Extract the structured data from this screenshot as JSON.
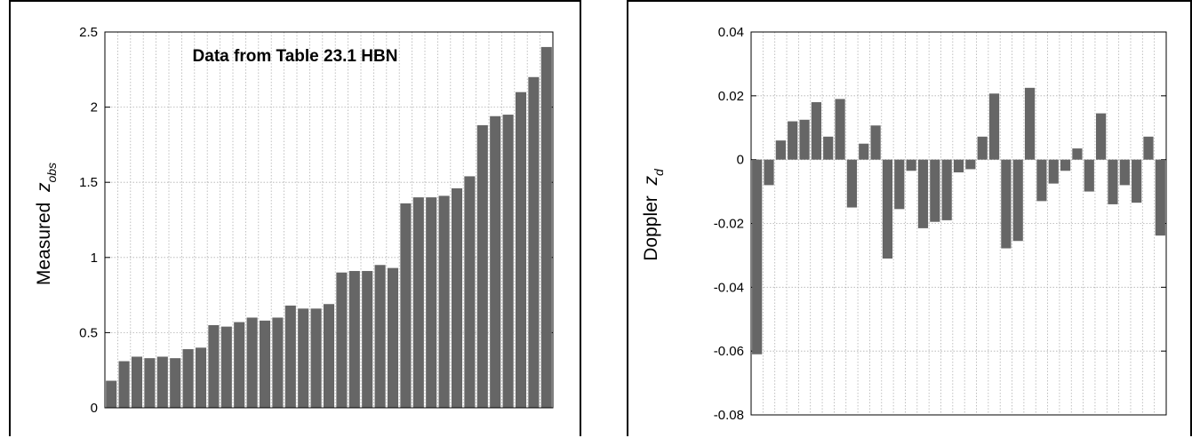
{
  "chart_data": [
    {
      "type": "bar",
      "title": "Data from Table 23.1 HBN",
      "ylabel_main": "Measured",
      "ylabel_var": "z",
      "ylabel_sub": "obs",
      "ylim": [
        0,
        2.5
      ],
      "yticks": [
        "0",
        "0.5",
        "1",
        "1.5",
        "2",
        "2.5"
      ],
      "ytick_values": [
        0,
        0.5,
        1,
        1.5,
        2,
        2.5
      ],
      "grid": true,
      "bar_color": "#666666",
      "values": [
        0.18,
        0.31,
        0.34,
        0.33,
        0.34,
        0.33,
        0.39,
        0.4,
        0.55,
        0.54,
        0.57,
        0.6,
        0.58,
        0.6,
        0.68,
        0.66,
        0.66,
        0.69,
        0.9,
        0.91,
        0.91,
        0.95,
        0.93,
        1.36,
        1.4,
        1.4,
        1.41,
        1.46,
        1.54,
        1.88,
        1.94,
        1.95,
        2.1,
        2.2,
        2.4
      ]
    },
    {
      "type": "bar",
      "title": "",
      "ylabel_main": "Doppler",
      "ylabel_var": "z",
      "ylabel_sub": "d",
      "ylim": [
        -0.08,
        0.04
      ],
      "yticks": [
        "0.04",
        "0.02",
        "0",
        "-0.02",
        "-0.04",
        "-0.06",
        "-0.08"
      ],
      "ytick_values": [
        0.04,
        0.02,
        0,
        -0.02,
        -0.04,
        -0.06,
        -0.08
      ],
      "grid": true,
      "bar_color": "#666666",
      "values": [
        -0.061,
        -0.008,
        0.006,
        0.012,
        0.0125,
        0.018,
        0.0072,
        0.019,
        -0.015,
        0.005,
        0.0107,
        -0.031,
        -0.0155,
        -0.0035,
        -0.0215,
        -0.0195,
        -0.019,
        -0.004,
        -0.003,
        0.0072,
        0.0207,
        -0.0278,
        -0.0255,
        0.0225,
        -0.013,
        -0.0075,
        -0.0035,
        0.0035,
        -0.01,
        0.0145,
        -0.014,
        -0.008,
        -0.0135,
        0.0072,
        -0.0238
      ]
    }
  ]
}
